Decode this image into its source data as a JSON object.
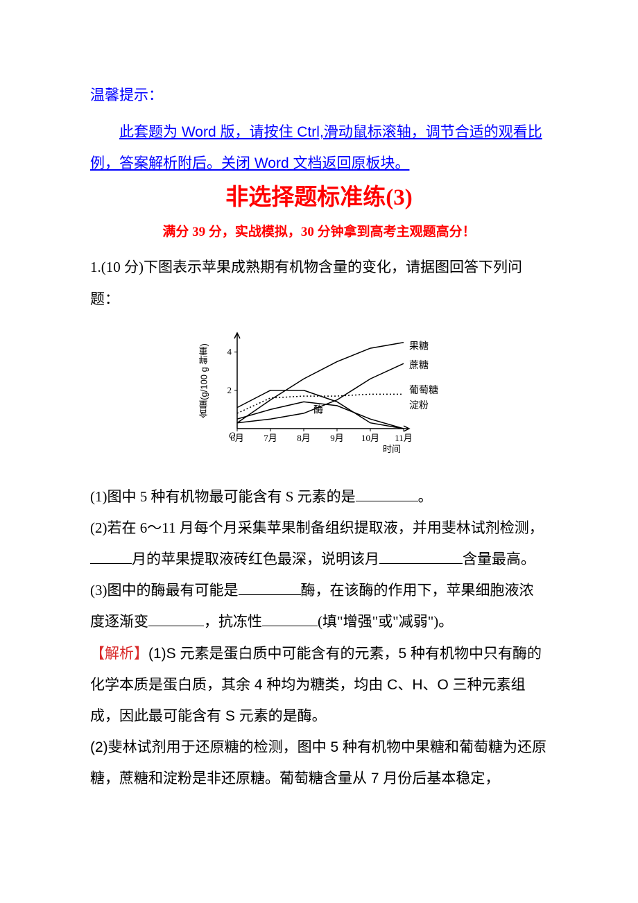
{
  "tip": {
    "heading": "温馨提示：",
    "instruction": "此套题为 Word 版，请按住 Ctrl,滑动鼠标滚轴，调节合适的观看比例，答案解析附后。关闭 Word 文档返回原板块。"
  },
  "title": "非选择题标准练(3)",
  "subtitle": "满分 39 分，实战模拟，30 分钟拿到高考主观题高分！",
  "q1_intro": "1.(10 分)下图表示苹果成熟期有机物含量的变化，请据图回答下列问题：",
  "q1_1_pre": "(1)图中 5 种有机物最可能含有 S 元素的是",
  "q1_1_post": "。",
  "q1_2_pre": "(2)若在 6～11 月每个月采集苹果制备组织提取液，并用斐林试剂检测，",
  "q1_2_mid": "月的苹果提取液砖红色最深，说明该月",
  "q1_2_post": "含量最高。",
  "q1_3_pre": "(3)图中的酶最有可能是",
  "q1_3_mid1": "酶，在该酶的作用下，苹果细胞液浓度逐渐变",
  "q1_3_mid2": "，抗冻性",
  "q1_3_post": "(填\"增强\"或\"减弱\")。",
  "analysis_label": "【解析】",
  "analysis_1": "(1)S 元素是蛋白质中可能含有的元素，5 种有机物中只有酶的化学本质是蛋白质，其余 4 种均为糖类，均由 C、H、O 三种元素组成，因此最可能含有 S 元素的是酶。",
  "analysis_2": "(2)斐林试剂用于还原糖的检测，图中 5 种有机物中果糖和葡萄糖为还原糖，蔗糖和淀粉是非还原糖。葡萄糖含量从 7 月份后基本稳定，",
  "chart": {
    "type": "line",
    "x_categories": [
      "6月",
      "7月",
      "8月",
      "9月",
      "10月",
      "11月"
    ],
    "x_label": "时间",
    "y_label": "含量(g/100 g 鲜重)",
    "y_ticks": [
      2,
      4
    ],
    "ylim": [
      0,
      5
    ],
    "series": [
      {
        "name": "果糖",
        "color": "#000000",
        "style": "solid",
        "points": [
          0.3,
          1.5,
          2.6,
          3.5,
          4.2,
          4.5
        ],
        "label_y": 4.3
      },
      {
        "name": "蔗糖",
        "color": "#000000",
        "style": "solid",
        "points": [
          0.3,
          0.5,
          0.8,
          1.5,
          2.6,
          3.4
        ],
        "label_y": 3.3
      },
      {
        "name": "葡萄糖",
        "color": "#000000",
        "style": "dotted",
        "points": [
          0.8,
          1.6,
          1.7,
          1.7,
          1.8,
          1.8
        ],
        "label_y": 2.0
      },
      {
        "name": "淀粉",
        "color": "#000000",
        "style": "solid",
        "points": [
          1.1,
          2.0,
          2.0,
          1.4,
          0.3,
          0.0
        ],
        "label_y": 1.2
      },
      {
        "name": "酶",
        "color": "#000000",
        "style": "solid",
        "points": [
          0.5,
          1.0,
          1.4,
          1.2,
          0.5,
          0.0
        ],
        "label_anchor": "inline"
      }
    ],
    "background_color": "#ffffff",
    "axis_color": "#000000",
    "label_fontsize": 13,
    "series_label_fontsize": 14,
    "line_width": 1.5
  },
  "colors": {
    "blue": "#0000ff",
    "title_red": "#ff0000",
    "analysis_red": "#d92b2b",
    "body": "#000000",
    "background": "#ffffff"
  }
}
